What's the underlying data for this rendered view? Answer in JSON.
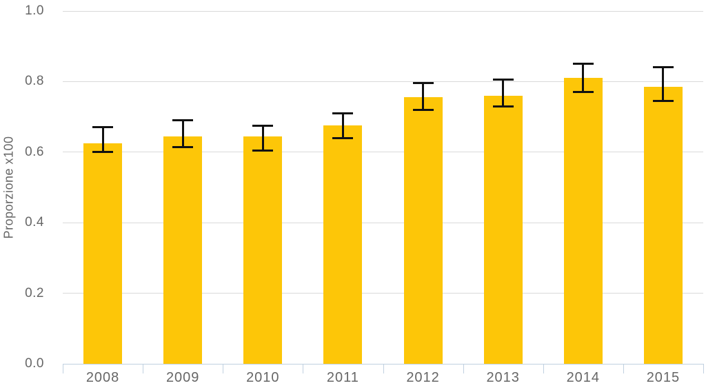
{
  "chart_data": {
    "type": "bar",
    "title": "",
    "xlabel": "",
    "ylabel": "Proporzione x100",
    "categories": [
      "2008",
      "2009",
      "2010",
      "2011",
      "2012",
      "2013",
      "2014",
      "2015"
    ],
    "series": [
      {
        "name": "Proporzione x100",
        "values": [
          0.625,
          0.645,
          0.645,
          0.675,
          0.755,
          0.76,
          0.81,
          0.785
        ],
        "error_low": [
          0.6,
          0.615,
          0.605,
          0.64,
          0.72,
          0.73,
          0.77,
          0.745
        ],
        "error_high": [
          0.67,
          0.69,
          0.675,
          0.71,
          0.795,
          0.805,
          0.85,
          0.84
        ]
      }
    ],
    "ylim": [
      0.0,
      1.0
    ],
    "y_ticks": [
      0.0,
      0.2,
      0.4,
      0.6,
      0.8,
      1.0
    ],
    "y_tick_labels": [
      "0.0",
      "0.2",
      "0.4",
      "0.6",
      "0.8",
      "1.0"
    ],
    "grid": "horizontal",
    "legend": "none"
  },
  "colors": {
    "bar": "#FDC608",
    "error_bar": "#111111",
    "gridline": "#D9D9D9",
    "axis_line": "#C0D0E0",
    "label_text": "#666666",
    "background": "#FFFFFF"
  }
}
